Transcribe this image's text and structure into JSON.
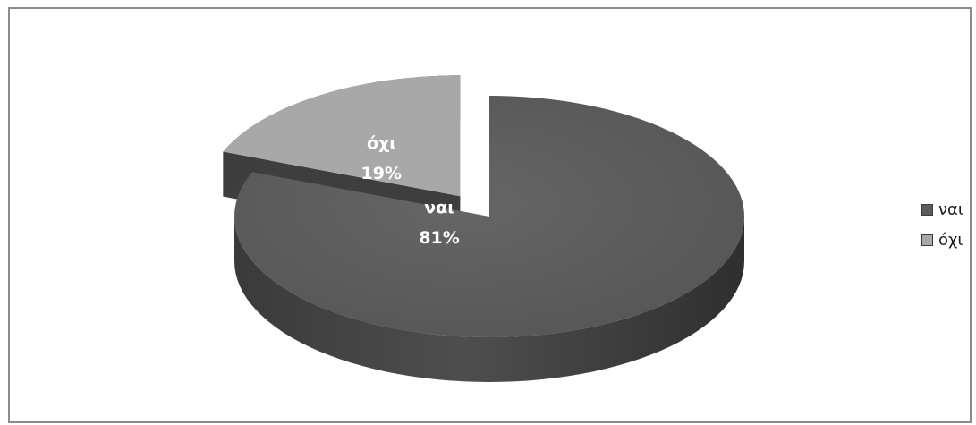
{
  "chart_data": {
    "type": "pie",
    "title": "",
    "categories": [
      "ναι",
      "όχι"
    ],
    "values": [
      81,
      19
    ],
    "value_labels": [
      "81%",
      "19%"
    ],
    "colors": [
      "#5c5c5c",
      "#a8a8a8"
    ],
    "style": "3d-exploded",
    "exploded_slice": "όχι",
    "legend_position": "right"
  }
}
